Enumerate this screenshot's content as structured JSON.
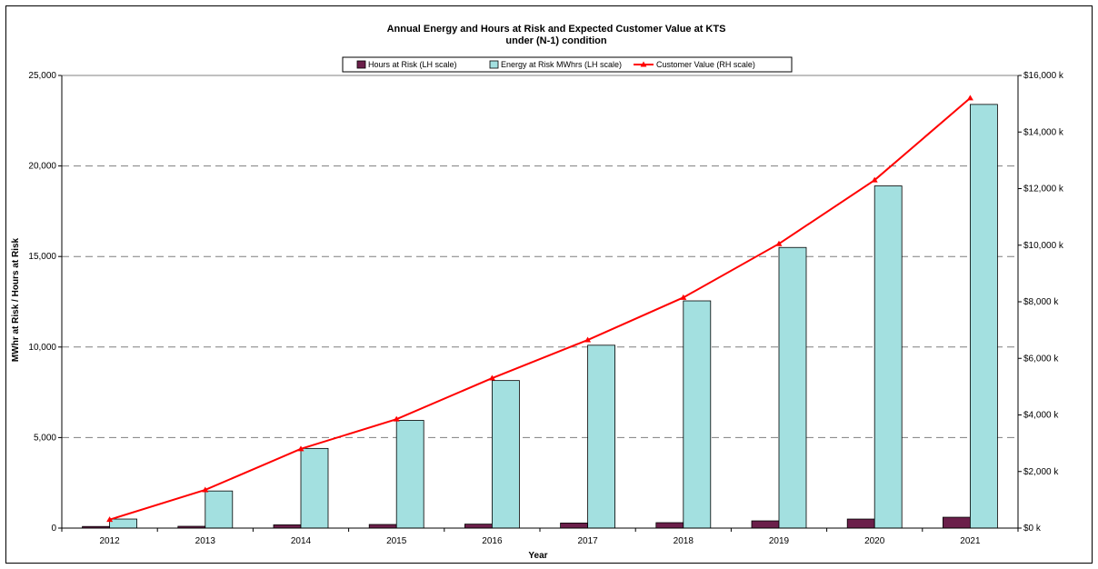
{
  "chart_data": {
    "type": "bar",
    "title": "Annual Energy and Hours at Risk and Expected Customer Value at KTS",
    "subtitle": "under (N-1) condition",
    "xlabel": "Year",
    "ylabel": "MWhr at Risk / Hours at Risk",
    "ylabel_right": "",
    "categories": [
      "2012",
      "2013",
      "2014",
      "2015",
      "2016",
      "2017",
      "2018",
      "2019",
      "2020",
      "2021"
    ],
    "ylim": [
      0,
      25000
    ],
    "ylim_right": [
      0,
      16000
    ],
    "yticks": [
      "0",
      "5,000",
      "10,000",
      "15,000",
      "20,000",
      "25,000"
    ],
    "yticks_right": [
      "$0 k",
      "$2,000 k",
      "$4,000 k",
      "$6,000 k",
      "$8,000 k",
      "$10,000 k",
      "$12,000 k",
      "$14,000 k",
      "$16,000 k"
    ],
    "grid": true,
    "legend_position": "top-center",
    "series": [
      {
        "name": "Hours at Risk (LH scale)",
        "type": "bar",
        "axis": "left",
        "color": "#6b1f4a",
        "values": [
          90,
          100,
          180,
          200,
          220,
          280,
          300,
          400,
          500,
          600
        ]
      },
      {
        "name": "Energy at Risk MWhrs (LH scale)",
        "type": "bar",
        "axis": "left",
        "color": "#a3e0e0",
        "values": [
          500,
          2050,
          4400,
          5950,
          8150,
          10100,
          12550,
          15500,
          18900,
          23400
        ]
      },
      {
        "name": "Customer Value (RH scale)",
        "type": "line",
        "axis": "right",
        "color": "#ff0000",
        "values": [
          300,
          1350,
          2800,
          3850,
          5300,
          6650,
          8150,
          10050,
          12300,
          15200
        ]
      }
    ]
  }
}
